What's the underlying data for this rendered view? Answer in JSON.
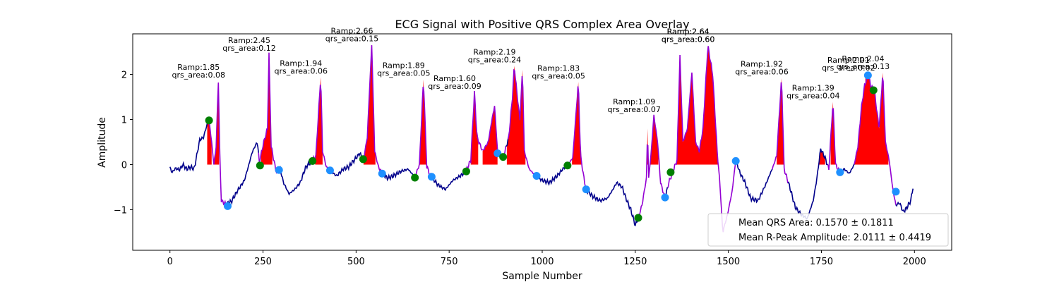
{
  "chart_data": {
    "type": "line",
    "title": "ECG Signal with Positive QRS Complex Area Overlay",
    "xlabel": "Sample Number",
    "ylabel": "Amplitude",
    "xlim": [
      -100,
      2100
    ],
    "ylim": [
      -1.9,
      2.9
    ],
    "xticks": [
      0,
      250,
      500,
      750,
      1000,
      1250,
      1500,
      1750,
      2000
    ],
    "yticks": [
      -1,
      0,
      1,
      2
    ],
    "grid": false,
    "legend_position": "lower-right",
    "legend": [
      "Mean QRS Area: 0.1570 ± 0.1811",
      "Mean R-Peak Amplitude: 2.0111 ± 0.4419"
    ],
    "colors": {
      "signal": "#00008b",
      "qrs_segment": "#9400d3",
      "area_fill": "#ff0000",
      "q_marker": "#008000",
      "s_marker": "#1e90ff"
    },
    "ecg_keypoints": [
      [
        0,
        -0.05
      ],
      [
        5,
        -0.18
      ],
      [
        15,
        -0.08
      ],
      [
        25,
        -0.12
      ],
      [
        35,
        0.0
      ],
      [
        45,
        -0.1
      ],
      [
        55,
        -0.05
      ],
      [
        65,
        -0.1
      ],
      [
        72,
        0.2
      ],
      [
        80,
        0.55
      ],
      [
        90,
        0.6
      ],
      [
        100,
        0.9
      ],
      [
        105,
        0.98
      ],
      [
        112,
        0.5
      ],
      [
        118,
        0.0
      ],
      [
        124,
        0.4
      ],
      [
        130,
        1.85
      ],
      [
        134,
        0.2
      ],
      [
        138,
        -0.8
      ],
      [
        150,
        -0.88
      ],
      [
        165,
        -0.82
      ],
      [
        180,
        -0.6
      ],
      [
        200,
        -0.35
      ],
      [
        212,
        0.0
      ],
      [
        220,
        0.25
      ],
      [
        228,
        0.4
      ],
      [
        235,
        0.5
      ],
      [
        240,
        0.05
      ],
      [
        252,
        0.5
      ],
      [
        262,
        0.8
      ],
      [
        266,
        2.45
      ],
      [
        272,
        0.4
      ],
      [
        285,
        -0.15
      ],
      [
        296,
        -0.1
      ],
      [
        305,
        -0.4
      ],
      [
        320,
        -0.65
      ],
      [
        335,
        -0.55
      ],
      [
        350,
        -0.4
      ],
      [
        365,
        -0.05
      ],
      [
        382,
        0.08
      ],
      [
        392,
        0.2
      ],
      [
        405,
        1.94
      ],
      [
        410,
        0.3
      ],
      [
        420,
        -0.05
      ],
      [
        432,
        -0.15
      ],
      [
        448,
        -0.25
      ],
      [
        465,
        -0.1
      ],
      [
        480,
        -0.05
      ],
      [
        495,
        0.1
      ],
      [
        510,
        0.25
      ],
      [
        520,
        0.12
      ],
      [
        530,
        0.6
      ],
      [
        542,
        2.66
      ],
      [
        550,
        0.3
      ],
      [
        560,
        -0.05
      ],
      [
        570,
        -0.2
      ],
      [
        585,
        -0.3
      ],
      [
        600,
        -0.25
      ],
      [
        620,
        -0.15
      ],
      [
        640,
        -0.1
      ],
      [
        658,
        -0.28
      ],
      [
        670,
        0.0
      ],
      [
        681,
        1.89
      ],
      [
        690,
        -0.05
      ],
      [
        700,
        -0.25
      ],
      [
        720,
        -0.45
      ],
      [
        740,
        -0.55
      ],
      [
        760,
        -0.35
      ],
      [
        780,
        -0.25
      ],
      [
        795,
        -0.15
      ],
      [
        808,
        0.1
      ],
      [
        818,
        1.6
      ],
      [
        825,
        0.6
      ],
      [
        840,
        0.3
      ],
      [
        855,
        0.5
      ],
      [
        865,
        1.0
      ],
      [
        872,
        1.3
      ],
      [
        880,
        0.3
      ],
      [
        895,
        0.15
      ],
      [
        910,
        0.6
      ],
      [
        920,
        1.5
      ],
      [
        925,
        2.19
      ],
      [
        932,
        1.6
      ],
      [
        940,
        1.0
      ],
      [
        947,
        2.1
      ],
      [
        952,
        0.3
      ],
      [
        965,
        -0.1
      ],
      [
        983,
        -0.25
      ],
      [
        1000,
        -0.35
      ],
      [
        1020,
        -0.4
      ],
      [
        1040,
        -0.25
      ],
      [
        1055,
        -0.1
      ],
      [
        1068,
        -0.02
      ],
      [
        1082,
        0.15
      ],
      [
        1097,
        1.83
      ],
      [
        1103,
        0.2
      ],
      [
        1112,
        -0.3
      ],
      [
        1118,
        -0.55
      ],
      [
        1135,
        -0.7
      ],
      [
        1155,
        -0.8
      ],
      [
        1175,
        -0.75
      ],
      [
        1190,
        -0.55
      ],
      [
        1200,
        -0.4
      ],
      [
        1215,
        -0.5
      ],
      [
        1225,
        -0.75
      ],
      [
        1238,
        -1.0
      ],
      [
        1250,
        -1.35
      ],
      [
        1258,
        -1.18
      ],
      [
        1268,
        -0.9
      ],
      [
        1280,
        -0.3
      ],
      [
        1283,
        0.8
      ],
      [
        1286,
        -0.3
      ],
      [
        1293,
        0.3
      ],
      [
        1300,
        1.09
      ],
      [
        1310,
        0.5
      ],
      [
        1318,
        -0.4
      ],
      [
        1330,
        -0.75
      ],
      [
        1340,
        -0.4
      ],
      [
        1350,
        -0.18
      ],
      [
        1362,
        0.1
      ],
      [
        1370,
        2.4
      ],
      [
        1378,
        0.5
      ],
      [
        1390,
        0.8
      ],
      [
        1402,
        2.05
      ],
      [
        1412,
        0.5
      ],
      [
        1422,
        0.3
      ],
      [
        1432,
        0.8
      ],
      [
        1445,
        2.64
      ],
      [
        1458,
        2.0
      ],
      [
        1470,
        0.3
      ],
      [
        1478,
        -0.5
      ],
      [
        1485,
        -1.5
      ],
      [
        1498,
        -1.1
      ],
      [
        1510,
        -0.6
      ],
      [
        1520,
        0.1
      ],
      [
        1532,
        -0.2
      ],
      [
        1545,
        -0.4
      ],
      [
        1560,
        -0.75
      ],
      [
        1580,
        -0.8
      ],
      [
        1600,
        -0.45
      ],
      [
        1620,
        -0.05
      ],
      [
        1630,
        0.2
      ],
      [
        1643,
        1.92
      ],
      [
        1650,
        -0.1
      ],
      [
        1665,
        -0.5
      ],
      [
        1680,
        -0.95
      ],
      [
        1695,
        -1.1
      ],
      [
        1712,
        -1.2
      ],
      [
        1728,
        -0.8
      ],
      [
        1738,
        -0.3
      ],
      [
        1748,
        0.35
      ],
      [
        1760,
        0.15
      ],
      [
        1770,
        -0.1
      ],
      [
        1781,
        1.39
      ],
      [
        1788,
        0.0
      ],
      [
        1800,
        -0.18
      ],
      [
        1812,
        -0.1
      ],
      [
        1825,
        -0.2
      ],
      [
        1838,
        0.0
      ],
      [
        1848,
        0.4
      ],
      [
        1858,
        1.3
      ],
      [
        1866,
        1.75
      ],
      [
        1876,
        2.01
      ],
      [
        1882,
        1.75
      ],
      [
        1892,
        1.65
      ],
      [
        1905,
        0.8
      ],
      [
        1915,
        2.04
      ],
      [
        1922,
        0.5
      ],
      [
        1932,
        0.1
      ],
      [
        1942,
        -0.55
      ],
      [
        1950,
        -0.9
      ],
      [
        1960,
        -0.85
      ],
      [
        1970,
        -1.05
      ],
      [
        1980,
        -0.95
      ],
      [
        1990,
        -0.8
      ],
      [
        1997,
        -0.45
      ]
    ],
    "qrs_segments": [
      [
        105,
        155
      ],
      [
        240,
        295
      ],
      [
        383,
        432
      ],
      [
        517,
        570
      ],
      [
        658,
        705
      ],
      [
        795,
        902
      ],
      [
        910,
        983
      ],
      [
        1068,
        1120
      ],
      [
        1258,
        1330
      ],
      [
        1340,
        1520
      ],
      [
        1620,
        1660
      ],
      [
        1770,
        1800
      ],
      [
        1840,
        1950
      ]
    ],
    "q_points": [
      {
        "x": 105,
        "y": 0.98
      },
      {
        "x": 242,
        "y": -0.02
      },
      {
        "x": 383,
        "y": 0.08
      },
      {
        "x": 519,
        "y": 0.12
      },
      {
        "x": 658,
        "y": -0.29
      },
      {
        "x": 796,
        "y": -0.15
      },
      {
        "x": 895,
        "y": 0.17
      },
      {
        "x": 1068,
        "y": -0.02
      },
      {
        "x": 1258,
        "y": -1.18
      },
      {
        "x": 1345,
        "y": -0.17
      },
      {
        "x": 1890,
        "y": 1.65
      }
    ],
    "s_points": [
      {
        "x": 155,
        "y": -0.92
      },
      {
        "x": 293,
        "y": -0.12
      },
      {
        "x": 430,
        "y": -0.13
      },
      {
        "x": 570,
        "y": -0.2
      },
      {
        "x": 703,
        "y": -0.27
      },
      {
        "x": 880,
        "y": 0.25
      },
      {
        "x": 985,
        "y": -0.25
      },
      {
        "x": 1118,
        "y": -0.55
      },
      {
        "x": 1330,
        "y": -0.73
      },
      {
        "x": 1520,
        "y": 0.08
      },
      {
        "x": 1800,
        "y": -0.17
      },
      {
        "x": 1950,
        "y": -0.6
      },
      {
        "x": 1875,
        "y": 1.98
      }
    ],
    "fill_regions": [
      {
        "x": [
          100,
          112
        ],
        "base_to": 0.9
      },
      {
        "x": [
          118,
          132
        ],
        "base_to": 1.85
      },
      {
        "x": [
          245,
          275
        ],
        "base_to": 2.45
      },
      {
        "x": [
          390,
          410
        ],
        "base_to": 1.94
      },
      {
        "x": [
          520,
          552
        ],
        "base_to": 2.66
      },
      {
        "x": [
          665,
          688
        ],
        "base_to": 1.89
      },
      {
        "x": [
          808,
          828
        ],
        "base_to": 1.6
      },
      {
        "x": [
          840,
          880
        ],
        "base_to": 1.3
      },
      {
        "x": [
          905,
          955
        ],
        "base_to": 2.19
      },
      {
        "x": [
          1080,
          1105
        ],
        "base_to": 1.83
      },
      {
        "x": [
          1282,
          1312
        ],
        "base_to": 1.09
      },
      {
        "x": [
          1355,
          1475
        ],
        "base_to": 2.64
      },
      {
        "x": [
          1630,
          1652
        ],
        "base_to": 1.92
      },
      {
        "x": [
          1742,
          1760
        ],
        "base_to": 0.35
      },
      {
        "x": [
          1775,
          1790
        ],
        "base_to": 1.39
      },
      {
        "x": [
          1838,
          1930
        ],
        "base_to": 2.04
      }
    ],
    "annotations": [
      {
        "x": 130,
        "y": 1.85,
        "ramp": "Ramp:1.85",
        "area": "qrs_area:0.08"
      },
      {
        "x": 266,
        "y": 2.45,
        "ramp": "Ramp:2.45",
        "area": "qrs_area:0.12"
      },
      {
        "x": 405,
        "y": 1.94,
        "ramp": "Ramp:1.94",
        "area": "qrs_area:0.06"
      },
      {
        "x": 542,
        "y": 2.66,
        "ramp": "Ramp:2.66",
        "area": "qrs_area:0.15"
      },
      {
        "x": 681,
        "y": 1.89,
        "ramp": "Ramp:1.89",
        "area": "qrs_area:0.05"
      },
      {
        "x": 818,
        "y": 1.6,
        "ramp": "Ramp:1.60",
        "area": "qrs_area:0.09"
      },
      {
        "x": 925,
        "y": 2.19,
        "ramp": "Ramp:2.19",
        "area": "qrs_area:0.24"
      },
      {
        "x": 1097,
        "y": 1.83,
        "ramp": "Ramp:1.83",
        "area": "qrs_area:0.05"
      },
      {
        "x": 1300,
        "y": 1.09,
        "ramp": "Ramp:1.09",
        "area": "qrs_area:0.07"
      },
      {
        "x": 1445,
        "y": 2.64,
        "ramp": "Ramp:2.64",
        "area": "qrs_area:0.60"
      },
      {
        "x": 1445,
        "y": 2.64,
        "ramp": "Ramp:2.64",
        "area": "qrs_area:0.60"
      },
      {
        "x": 1643,
        "y": 1.92,
        "ramp": "Ramp:1.92",
        "area": "qrs_area:0.06"
      },
      {
        "x": 1781,
        "y": 1.39,
        "ramp": "Ramp:1.39",
        "area": "qrs_area:0.04"
      },
      {
        "x": 1876,
        "y": 2.01,
        "ramp": "Ramp:2.01",
        "area": "qrs_area:0.02"
      },
      {
        "x": 1915,
        "y": 2.04,
        "ramp": "Ramp:2.04",
        "area": "qrs_area:0.13"
      }
    ]
  }
}
